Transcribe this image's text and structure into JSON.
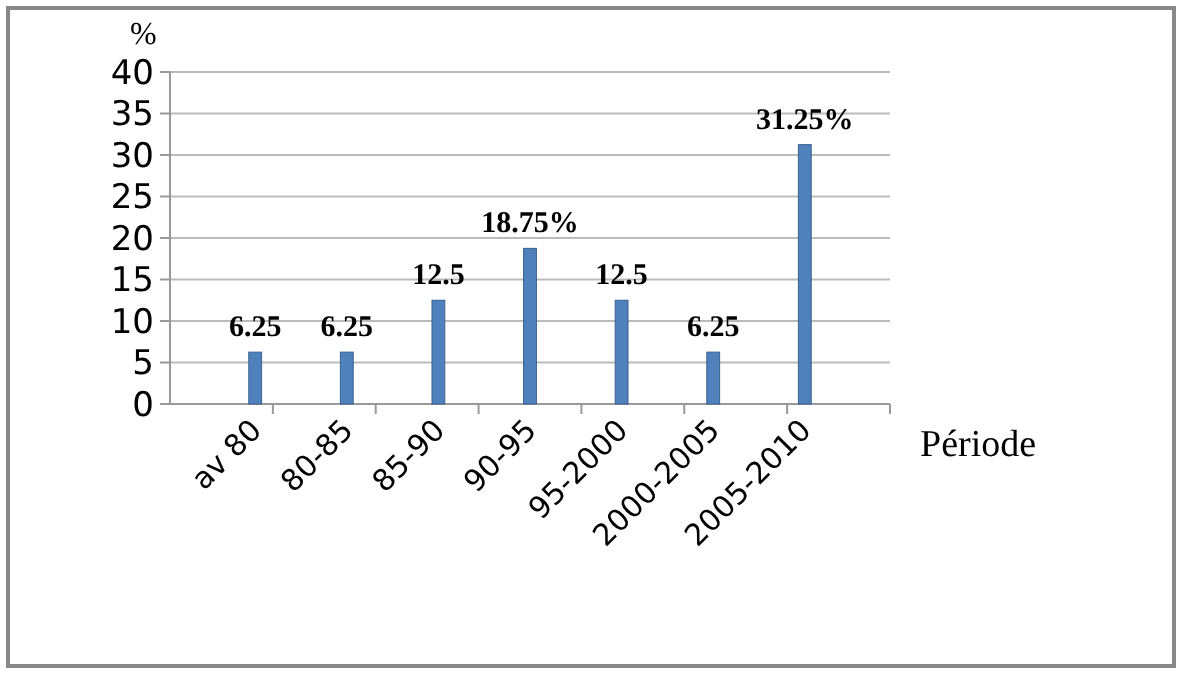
{
  "chart_data": {
    "type": "bar",
    "ylabel": "%",
    "xlabel": "Période",
    "categories": [
      "av 80",
      "80-85",
      "85-90",
      "90-95",
      "95-2000",
      "2000-2005",
      "2005-2010"
    ],
    "values": [
      6.25,
      6.25,
      12.5,
      18.75,
      12.5,
      6.25,
      31.25
    ],
    "value_labels": [
      "6.25",
      "6.25",
      "12.5",
      "18.75%",
      "12.5",
      "6.25",
      "31.25%"
    ],
    "color": "#4f81bd",
    "ylim": [
      0,
      40
    ],
    "yticks": [
      0,
      5,
      10,
      15,
      20,
      25,
      30,
      35,
      40
    ],
    "grid": "y"
  }
}
